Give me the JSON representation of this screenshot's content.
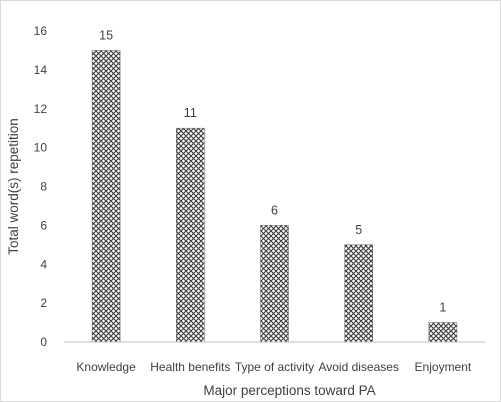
{
  "chart_data": {
    "type": "bar",
    "categories": [
      "Knowledge",
      "Health benefits",
      "Type of activity",
      "Avoid diseases",
      "Enjoyment"
    ],
    "values": [
      15,
      11,
      6,
      5,
      1
    ],
    "data_labels": [
      "15",
      "11",
      "6",
      "5",
      "1"
    ],
    "title": "",
    "xlabel": "Major perceptions toward PA",
    "ylabel": "Total word(s) repetition",
    "ylim": [
      0,
      16
    ],
    "yticks": [
      0,
      2,
      4,
      6,
      8,
      10,
      12,
      14,
      16
    ],
    "ytick_labels": [
      "0",
      "2",
      "4",
      "6",
      "8",
      "10",
      "12",
      "14",
      "16"
    ],
    "grid": false,
    "legend": "none",
    "bar_pattern": "cross-hatch",
    "colors": {
      "bar_fill": "#ffffff",
      "bar_pattern": "#3a3a3a",
      "axis": "#bfbfbf",
      "text": "#404040"
    }
  }
}
